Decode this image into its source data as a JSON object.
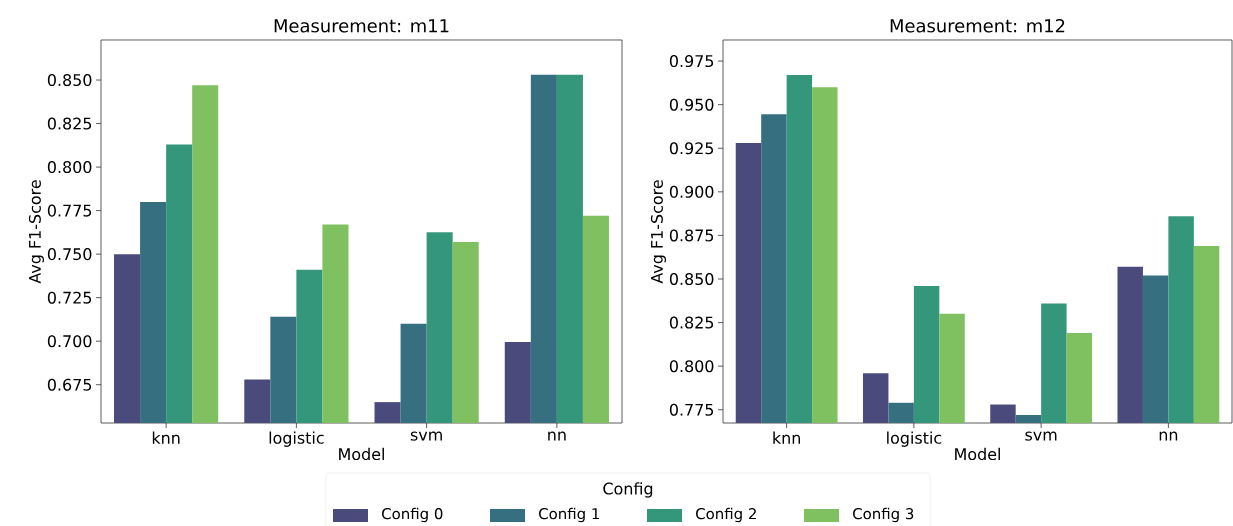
{
  "chart_data": [
    {
      "type": "bar",
      "title": "Measurement: m11",
      "xlabel": "Model",
      "ylabel": "Avg F1-Score",
      "legend_title": "Config",
      "legend": "bottom",
      "categories": [
        "knn",
        "logistic",
        "svm",
        "nn"
      ],
      "ylim": [
        0.653,
        0.873
      ],
      "yticks": [
        {
          "value": 0.675,
          "label": "0.675"
        },
        {
          "value": 0.7,
          "label": "0.700"
        },
        {
          "value": 0.725,
          "label": "0.725"
        },
        {
          "value": 0.75,
          "label": "0.750"
        },
        {
          "value": 0.775,
          "label": "0.775"
        },
        {
          "value": 0.8,
          "label": "0.800"
        },
        {
          "value": 0.825,
          "label": "0.825"
        },
        {
          "value": 0.85,
          "label": "0.850"
        }
      ],
      "series": [
        {
          "name": "Config 0",
          "color": "#4b4a7d",
          "values": [
            0.75,
            0.678,
            0.665,
            0.6995
          ]
        },
        {
          "name": "Config 1",
          "color": "#367080",
          "values": [
            0.78,
            0.714,
            0.71,
            0.853
          ]
        },
        {
          "name": "Config 2",
          "color": "#34977c",
          "values": [
            0.813,
            0.741,
            0.7625,
            0.853
          ]
        },
        {
          "name": "Config 3",
          "color": "#7fc161",
          "values": [
            0.847,
            0.767,
            0.757,
            0.772
          ]
        }
      ]
    },
    {
      "type": "bar",
      "title": "Measurement: m12",
      "xlabel": "Model",
      "ylabel": "Avg F1-Score",
      "categories": [
        "knn",
        "logistic",
        "svm",
        "nn"
      ],
      "ylim": [
        0.7674,
        0.9871
      ],
      "yticks": [
        {
          "value": 0.775,
          "label": "0.775"
        },
        {
          "value": 0.8,
          "label": "0.800"
        },
        {
          "value": 0.825,
          "label": "0.825"
        },
        {
          "value": 0.85,
          "label": "0.850"
        },
        {
          "value": 0.875,
          "label": "0.875"
        },
        {
          "value": 0.9,
          "label": "0.900"
        },
        {
          "value": 0.925,
          "label": "0.925"
        },
        {
          "value": 0.95,
          "label": "0.950"
        },
        {
          "value": 0.975,
          "label": "0.975"
        }
      ],
      "series": [
        {
          "color": "#4b4a7d",
          "values": [
            0.928,
            0.796,
            0.778,
            0.857
          ]
        },
        {
          "color": "#367080",
          "values": [
            0.9445,
            0.779,
            0.772,
            0.852
          ]
        },
        {
          "color": "#34977c",
          "values": [
            0.967,
            0.846,
            0.836,
            0.886
          ]
        },
        {
          "color": "#7fc161",
          "values": [
            0.96,
            0.83,
            0.819,
            0.869
          ]
        }
      ]
    }
  ]
}
